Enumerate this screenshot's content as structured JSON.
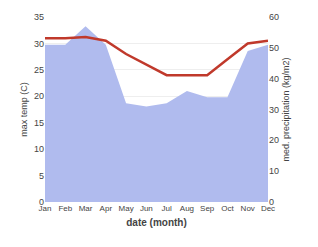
{
  "chart_data": {
    "type": "line",
    "xlabel": "date (month)",
    "ylabel": "max temp (C)",
    "y2label": "med. precipitation (kg/m2)",
    "categories": [
      "Jan",
      "Feb",
      "Mar",
      "Apr",
      "May",
      "Jun",
      "Jul",
      "Aug",
      "Sep",
      "Oct",
      "Nov",
      "Dec"
    ],
    "series": [
      {
        "type": "line",
        "color": "#c0392b",
        "values": [
          31.0,
          31.0,
          31.2,
          30.5,
          28.0,
          26.0,
          24.0,
          24.0,
          24.0,
          27.0,
          30.0,
          30.5
        ]
      },
      {
        "type": "area",
        "color": "#b0bbee",
        "axis": "y2",
        "values": [
          51,
          51,
          57,
          51,
          32,
          31,
          32,
          36,
          34,
          34,
          49,
          51
        ]
      }
    ],
    "ylim": [
      0,
      35
    ],
    "yticks": [
      0,
      5,
      10,
      15,
      20,
      25,
      30,
      35
    ],
    "y2lim": [
      0,
      60
    ],
    "y2ticks": [
      0,
      10,
      20,
      30,
      40,
      50,
      60
    ],
    "grid": true
  }
}
